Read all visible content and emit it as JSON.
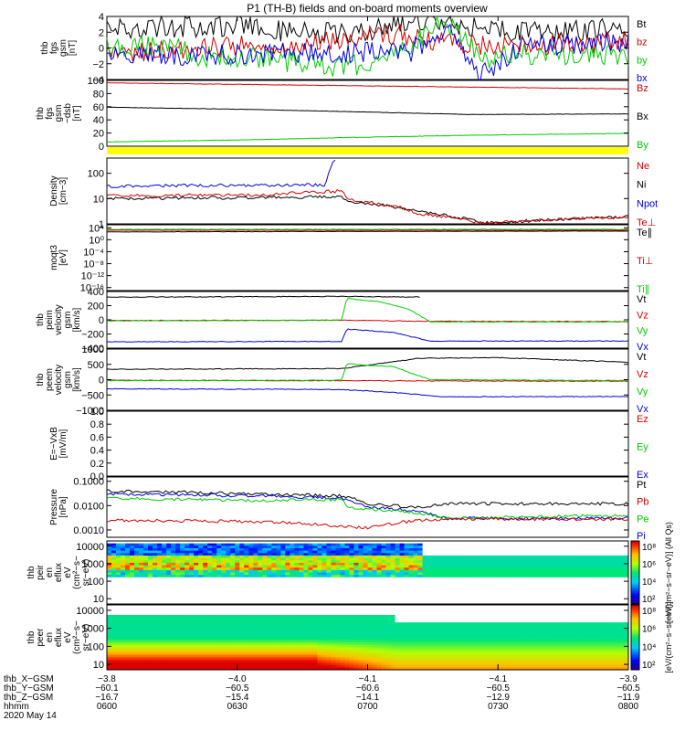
{
  "title": "P1 (TH-B) fields and on-board moments overview",
  "colors": {
    "black": "#000000",
    "red": "#d40000",
    "green": "#00cc00",
    "blue": "#0000dd",
    "yellow": "#ffff00"
  },
  "chart_data": [
    {
      "type": "line",
      "ylabel": [
        "thb",
        "fgs",
        "gsm",
        "[nT]"
      ],
      "y_ticks": [
        "4",
        "2",
        "0",
        "−2",
        "−4"
      ],
      "ylim": [
        -4,
        4
      ],
      "legend": [
        {
          "text": "Bt",
          "color": "#000000"
        },
        {
          "text": "bz",
          "color": "#d40000"
        },
        {
          "text": "by",
          "color": "#00cc00"
        },
        {
          "text": "bx",
          "color": "#0000dd"
        }
      ],
      "series": [
        {
          "name": "Bt",
          "color": "#000000",
          "x": [
            0,
            0.1,
            0.25,
            0.4,
            0.5,
            0.62,
            0.7,
            0.8,
            1.0
          ],
          "y": [
            2.5,
            2.6,
            2.8,
            1.8,
            2.0,
            3.7,
            2.6,
            2.1,
            2.4
          ]
        },
        {
          "name": "bz",
          "color": "#d40000",
          "x": [
            0,
            0.15,
            0.3,
            0.45,
            0.55,
            0.62,
            0.75,
            1.0
          ],
          "y": [
            -0.9,
            -0.2,
            0.3,
            1.0,
            1.8,
            1.0,
            0.2,
            0.8
          ]
        },
        {
          "name": "by",
          "color": "#00cc00",
          "x": [
            0,
            0.15,
            0.16,
            0.3,
            0.45,
            0.55,
            0.65,
            0.72,
            0.85,
            1.0
          ],
          "y": [
            0.1,
            0.2,
            -1.0,
            -1.2,
            -2.7,
            -0.8,
            3.5,
            -1.3,
            -0.7,
            -1.0
          ]
        },
        {
          "name": "bx",
          "color": "#0000dd",
          "x": [
            0,
            0.3,
            0.5,
            0.58,
            0.65,
            0.72,
            0.8,
            1.0
          ],
          "y": [
            -0.8,
            -0.8,
            -0.5,
            -0.5,
            2.8,
            -3.5,
            0.3,
            0.6
          ]
        }
      ]
    },
    {
      "type": "line",
      "ylabel": [
        "thb",
        "fgs",
        "gsm",
        "−dsb",
        "[nT]"
      ],
      "y_ticks": [
        "100",
        "80",
        "60",
        "40",
        "20",
        "0"
      ],
      "ylim": [
        -8,
        100
      ],
      "legend": [
        {
          "text": "Bz",
          "color": "#d40000"
        },
        {
          "text": "Bx",
          "color": "#000000"
        },
        {
          "text": "By",
          "color": "#00cc00"
        }
      ],
      "series": [
        {
          "name": "Bz",
          "color": "#d40000",
          "x": [
            0,
            0.5,
            1.0
          ],
          "y": [
            96,
            91,
            86
          ]
        },
        {
          "name": "Bx",
          "color": "#000000",
          "x": [
            0,
            0.3,
            0.5,
            0.7,
            1.0
          ],
          "y": [
            56,
            52,
            48,
            44,
            45
          ]
        },
        {
          "name": "By",
          "color": "#00cc00",
          "x": [
            0,
            0.3,
            0.5,
            0.7,
            1.0
          ],
          "y": [
            -1,
            3,
            7,
            10,
            13
          ]
        }
      ]
    },
    {
      "type": "line",
      "scale": "log",
      "ylabel": [
        "Density",
        "[cm−3]"
      ],
      "y_ticks": [
        {
          "text": "100",
          "v": 100
        },
        {
          "text": "10",
          "v": 10
        },
        {
          "text": "1",
          "v": 1
        }
      ],
      "ylim": [
        1,
        400
      ],
      "legend": [
        {
          "text": "Ne",
          "color": "#d40000"
        },
        {
          "text": "Ni",
          "color": "#000000"
        },
        {
          "text": "Npot",
          "color": "#0000dd"
        },
        {
          "text": "Te⊥",
          "color": "#d40000"
        }
      ],
      "series": [
        {
          "name": "Npot",
          "color": "#0000dd",
          "x": [
            0,
            0.05,
            0.42,
            0.44
          ],
          "y": [
            30,
            32,
            35,
            350
          ]
        },
        {
          "name": "Ni",
          "color": "#000000",
          "x": [
            0,
            0.3,
            0.45,
            0.46,
            0.6,
            0.72,
            1.0
          ],
          "y": [
            10,
            11,
            12,
            8,
            3,
            1.05,
            1.9
          ]
        },
        {
          "name": "Ne",
          "color": "#d40000",
          "x": [
            0,
            0.3,
            0.45,
            0.46,
            0.6,
            0.72,
            1.0
          ],
          "y": [
            13,
            14,
            20,
            9,
            2.5,
            1.05,
            1.9
          ]
        }
      ]
    },
    {
      "type": "line",
      "scale": "log",
      "ylabel": [
        "moqt3",
        "[eV]"
      ],
      "y_ticks": [
        {
          "text": "10⁴",
          "v": 10000
        },
        {
          "text": "10⁰",
          "v": 1
        },
        {
          "text": "10⁻⁴",
          "v": 0.0001
        },
        {
          "text": "10⁻⁸",
          "v": 1e-08
        },
        {
          "text": "10⁻¹²",
          "v": 1e-12
        },
        {
          "text": "10⁻¹⁶",
          "v": 1e-16
        }
      ],
      "ylim": [
        1e-17,
        100000.0
      ],
      "legend": [
        {
          "text": "Te∥",
          "color": "#000000"
        },
        {
          "text": "Ti⊥",
          "color": "#d40000"
        },
        {
          "text": "Ti∥",
          "color": "#00cc00"
        }
      ],
      "series": [
        {
          "name": "Ti∥",
          "color": "#00cc00",
          "x": [
            0,
            1.0
          ],
          "y": [
            3000,
            3000
          ]
        },
        {
          "name": "Ti⊥",
          "color": "#d40000",
          "x": [
            0,
            1.0
          ],
          "y": [
            1500,
            1500
          ]
        },
        {
          "name": "Te∥",
          "color": "#000000",
          "x": [
            0,
            0.5,
            1.0
          ],
          "y": [
            400,
            600,
            800
          ]
        }
      ]
    },
    {
      "type": "line",
      "ylabel": [
        "thb",
        "peim",
        "velocity",
        "gsm",
        "[km/s]"
      ],
      "y_ticks": [
        "400",
        "200",
        "0",
        "−200",
        "−400"
      ],
      "ylim": [
        -400,
        400
      ],
      "legend": [
        {
          "text": "Vt",
          "color": "#000000"
        },
        {
          "text": "Vz",
          "color": "#d40000"
        },
        {
          "text": "Vy",
          "color": "#00cc00"
        },
        {
          "text": "Vx",
          "color": "#0000dd"
        }
      ],
      "series": [
        {
          "name": "Vt",
          "color": "#000000",
          "x": [
            0,
            0.45,
            0.46,
            0.6
          ],
          "y": [
            320,
            330,
            330,
            320
          ]
        },
        {
          "name": "Vz",
          "color": "#d40000",
          "x": [
            0,
            0.45,
            0.6,
            1.0
          ],
          "y": [
            -10,
            -5,
            -20,
            -25
          ]
        },
        {
          "name": "Vy",
          "color": "#00cc00",
          "x": [
            0,
            0.45,
            0.46,
            0.52,
            0.58,
            0.62,
            1.0
          ],
          "y": [
            -15,
            -5,
            300,
            260,
            150,
            -30,
            -30
          ]
        },
        {
          "name": "Vx",
          "color": "#0000dd",
          "x": [
            0,
            0.45,
            0.46,
            0.55,
            0.62,
            1.0
          ],
          "y": [
            -310,
            -305,
            -130,
            -180,
            -300,
            -300
          ]
        }
      ]
    },
    {
      "type": "line",
      "ylabel": [
        "thb",
        "peem",
        "velocity",
        "gsm",
        "[km/s]"
      ],
      "y_ticks": [
        "1000",
        "500",
        "0",
        "−500",
        "−1000"
      ],
      "ylim": [
        -1000,
        1000
      ],
      "legend": [
        {
          "text": "Vt",
          "color": "#000000"
        },
        {
          "text": "Vz",
          "color": "#d40000"
        },
        {
          "text": "Vy",
          "color": "#00cc00"
        },
        {
          "text": "Vx",
          "color": "#0000dd"
        }
      ],
      "series": [
        {
          "name": "Vt",
          "color": "#000000",
          "x": [
            0,
            0.45,
            0.6,
            0.75,
            1.0
          ],
          "y": [
            340,
            360,
            700,
            720,
            570
          ]
        },
        {
          "name": "Vz",
          "color": "#d40000",
          "x": [
            0,
            1.0
          ],
          "y": [
            -20,
            -50
          ]
        },
        {
          "name": "Vy",
          "color": "#00cc00",
          "x": [
            0,
            0.45,
            0.46,
            0.55,
            0.62,
            1.0
          ],
          "y": [
            -30,
            -20,
            520,
            420,
            0,
            -30
          ]
        },
        {
          "name": "Vx",
          "color": "#0000dd",
          "x": [
            0,
            0.45,
            0.55,
            0.65,
            1.0
          ],
          "y": [
            -300,
            -320,
            -420,
            -560,
            -550
          ]
        }
      ]
    },
    {
      "type": "line",
      "ylabel": [
        "E=−VxB",
        "[mV/m]"
      ],
      "y_ticks": [
        "1.0",
        "0.8",
        "0.6",
        "0.4",
        "0.2",
        "0.0"
      ],
      "ylim": [
        0,
        1
      ],
      "legend": [
        {
          "text": "Ez",
          "color": "#d40000"
        },
        {
          "text": "Ey",
          "color": "#00cc00"
        },
        {
          "text": "Ex",
          "color": "#0000dd"
        }
      ],
      "series": []
    },
    {
      "type": "line",
      "scale": "log",
      "ylabel": [
        "Pressure",
        "[nPa]"
      ],
      "y_ticks": [
        {
          "text": "0.1000",
          "v": 0.1
        },
        {
          "text": "0.0100",
          "v": 0.01
        },
        {
          "text": "0.0010",
          "v": 0.001
        }
      ],
      "ylim": [
        0.0005,
        0.15
      ],
      "legend": [
        {
          "text": "Pt",
          "color": "#000000"
        },
        {
          "text": "Pb",
          "color": "#d40000"
        },
        {
          "text": "Pe",
          "color": "#00cc00"
        },
        {
          "text": "Pi",
          "color": "#0000dd"
        }
      ],
      "series": [
        {
          "name": "Pt",
          "color": "#000000",
          "x": [
            0,
            0.3,
            0.45,
            0.5,
            0.6,
            0.65,
            1.0
          ],
          "y": [
            0.04,
            0.03,
            0.025,
            0.012,
            0.008,
            0.012,
            0.012
          ]
        },
        {
          "name": "Pi",
          "color": "#0000dd",
          "x": [
            0,
            0.3,
            0.45,
            0.5,
            0.6,
            0.65,
            1.0
          ],
          "y": [
            0.03,
            0.025,
            0.02,
            0.009,
            0.0055,
            0.003,
            0.003
          ]
        },
        {
          "name": "Pe",
          "color": "#00cc00",
          "x": [
            0,
            0.3,
            0.45,
            0.46,
            0.6,
            0.65,
            1.0
          ],
          "y": [
            0.02,
            0.016,
            0.018,
            0.008,
            0.005,
            0.003,
            0.004
          ]
        },
        {
          "name": "Pb",
          "color": "#d40000",
          "x": [
            0,
            0.3,
            0.5,
            0.6,
            0.65,
            1.0
          ],
          "y": [
            0.0025,
            0.0022,
            0.0012,
            0.0025,
            0.0028,
            0.0028
          ]
        }
      ]
    },
    {
      "type": "heatmap",
      "ylabel": [
        "thb",
        "peir",
        "en",
        "eflux",
        "eV",
        "(cm²−s−",
        "sr−eV)"
      ],
      "y_ticks": [
        {
          "text": "10000",
          "v": 10000
        },
        {
          "text": "1000",
          "v": 1000
        },
        {
          "text": "100",
          "v": 100
        },
        {
          "text": "10",
          "v": 10
        }
      ],
      "ylim": [
        5,
        20000
      ],
      "colorbar_ticks": [
        "10⁸",
        "10⁶",
        "10⁴",
        "10²"
      ],
      "colorbar_label": "[eV/(cm²−s−sr−eV)] (All Qs)"
    },
    {
      "type": "heatmap",
      "ylabel": [
        "thb",
        "peer",
        "en",
        "eflux",
        "eV",
        "(cm²−s−",
        "sr−eV)"
      ],
      "y_ticks": [
        {
          "text": "10000",
          "v": 10000
        },
        {
          "text": "1000",
          "v": 1000
        },
        {
          "text": "100",
          "v": 100
        },
        {
          "text": "10",
          "v": 10
        }
      ],
      "ylim": [
        5,
        20000
      ],
      "colorbar_ticks": [
        "10⁸",
        "10⁶",
        "10⁴",
        "10²"
      ],
      "colorbar_label": "[eV/(cm²−s−sr−eV)]"
    }
  ],
  "x_axis": {
    "row_labels": [
      "thb_X−GSM",
      "thb_Y−GSM",
      "thb_Z−GSM",
      "hhmm",
      "2020 May 14"
    ],
    "ticks": [
      {
        "rows": [
          "−3.8",
          "−60.1",
          "−16.7",
          "0600"
        ]
      },
      {
        "rows": [
          "−4.0",
          "−60.5",
          "−15.4",
          "0630"
        ]
      },
      {
        "rows": [
          "−4.1",
          "−60.6",
          "−14.1",
          "0700"
        ]
      },
      {
        "rows": [
          "−4.1",
          "−60.5",
          "−12.9",
          "0730"
        ]
      },
      {
        "rows": [
          "−3.9",
          "−60.5",
          "−11.9",
          "0800"
        ]
      }
    ]
  }
}
